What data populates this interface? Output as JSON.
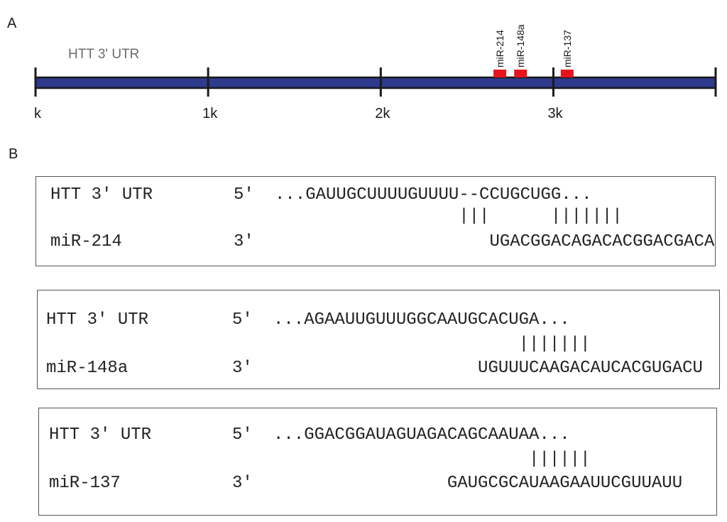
{
  "panel_a": {
    "letter": "A",
    "track_label": "HTT 3' UTR",
    "ticks": [
      {
        "label": "k",
        "value": 0
      },
      {
        "label": "1k",
        "value": 1000
      },
      {
        "label": "2k",
        "value": 2000
      },
      {
        "label": "3k",
        "value": 3000
      }
    ],
    "track_end_value": 3940,
    "bar_color": "#2e3a8c",
    "site_color": "#e8141c",
    "sites": [
      {
        "label": "miR-214",
        "position": 2690
      },
      {
        "label": "miR-148a",
        "position": 2810
      },
      {
        "label": "miR-137",
        "position": 3080
      }
    ]
  },
  "panel_b": {
    "letter": "B",
    "alignments": [
      {
        "utr_label": "HTT 3' UTR",
        "utr_end": "5'",
        "utr_seq": "...GAUUGCUUUUGUUUU--CCUGCUGG...",
        "pairs": "                  |||      |||||||",
        "mir_label": "miR-214",
        "mir_end": "3'",
        "mir_seq": "                     UGACGGACAGACACGGACGACA"
      },
      {
        "utr_label": "HTT 3' UTR",
        "utr_end": "5'",
        "utr_seq": "...AGAAUUGUUUGGCAAUGCACUGA...",
        "pairs": "                        |||||||",
        "mir_label": "miR-148a",
        "mir_end": "3'",
        "mir_seq": "                    UGUUUCAAGACAUCACGUGACU"
      },
      {
        "utr_label": "HTT 3' UTR",
        "utr_end": "5'",
        "utr_seq": "...GGACGGAUAGUAGACAGCAAUAA...",
        "pairs": "                         ||||||",
        "mir_label": "miR-137",
        "mir_end": "3'",
        "mir_seq": "                 GAUGCGCAUAAGAAUUCGUUAUU"
      }
    ]
  }
}
